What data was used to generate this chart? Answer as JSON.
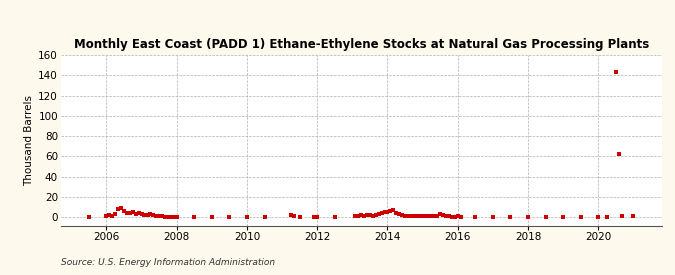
{
  "title": "Monthly East Coast (PADD 1) Ethane-Ethylene Stocks at Natural Gas Processing Plants",
  "ylabel": "Thousand Barrels",
  "source": "Source: U.S. Energy Information Administration",
  "background_color": "#fef9ed",
  "plot_bg_color": "#ffffff",
  "marker_color": "#cc0000",
  "xlim_left": 2004.7,
  "xlim_right": 2021.8,
  "ylim_bottom": -8,
  "ylim_top": 160,
  "yticks": [
    0,
    20,
    40,
    60,
    80,
    100,
    120,
    140,
    160
  ],
  "xticks": [
    2006,
    2008,
    2010,
    2012,
    2014,
    2016,
    2018,
    2020
  ],
  "data_points": [
    [
      2005.5,
      0
    ],
    [
      2006.0,
      1
    ],
    [
      2006.08,
      2
    ],
    [
      2006.17,
      1
    ],
    [
      2006.25,
      3
    ],
    [
      2006.33,
      8
    ],
    [
      2006.42,
      9
    ],
    [
      2006.5,
      6
    ],
    [
      2006.58,
      4
    ],
    [
      2006.67,
      4
    ],
    [
      2006.75,
      5
    ],
    [
      2006.83,
      3
    ],
    [
      2006.92,
      4
    ],
    [
      2007.0,
      3
    ],
    [
      2007.08,
      2
    ],
    [
      2007.17,
      2
    ],
    [
      2007.25,
      3
    ],
    [
      2007.33,
      2
    ],
    [
      2007.42,
      1
    ],
    [
      2007.5,
      1
    ],
    [
      2007.58,
      1
    ],
    [
      2007.67,
      0
    ],
    [
      2007.75,
      0
    ],
    [
      2007.83,
      0
    ],
    [
      2007.92,
      0
    ],
    [
      2008.0,
      0
    ],
    [
      2008.5,
      0
    ],
    [
      2009.0,
      0
    ],
    [
      2009.5,
      0
    ],
    [
      2010.0,
      0
    ],
    [
      2010.5,
      0
    ],
    [
      2011.25,
      2
    ],
    [
      2011.33,
      1
    ],
    [
      2011.5,
      0
    ],
    [
      2011.92,
      0
    ],
    [
      2012.0,
      0
    ],
    [
      2012.5,
      0
    ],
    [
      2013.08,
      1
    ],
    [
      2013.17,
      1
    ],
    [
      2013.25,
      2
    ],
    [
      2013.33,
      1
    ],
    [
      2013.42,
      2
    ],
    [
      2013.5,
      2
    ],
    [
      2013.58,
      1
    ],
    [
      2013.67,
      2
    ],
    [
      2013.75,
      3
    ],
    [
      2013.83,
      4
    ],
    [
      2013.92,
      5
    ],
    [
      2014.0,
      5
    ],
    [
      2014.08,
      6
    ],
    [
      2014.17,
      7
    ],
    [
      2014.25,
      4
    ],
    [
      2014.33,
      3
    ],
    [
      2014.42,
      2
    ],
    [
      2014.5,
      1
    ],
    [
      2014.58,
      1
    ],
    [
      2014.67,
      1
    ],
    [
      2014.75,
      1
    ],
    [
      2014.83,
      1
    ],
    [
      2014.92,
      1
    ],
    [
      2015.0,
      1
    ],
    [
      2015.08,
      1
    ],
    [
      2015.17,
      1
    ],
    [
      2015.25,
      1
    ],
    [
      2015.33,
      1
    ],
    [
      2015.42,
      1
    ],
    [
      2015.5,
      3
    ],
    [
      2015.58,
      2
    ],
    [
      2015.67,
      1
    ],
    [
      2015.75,
      1
    ],
    [
      2015.83,
      0
    ],
    [
      2015.92,
      0
    ],
    [
      2016.0,
      1
    ],
    [
      2016.08,
      0
    ],
    [
      2016.5,
      0
    ],
    [
      2017.0,
      0
    ],
    [
      2017.5,
      0
    ],
    [
      2018.0,
      0
    ],
    [
      2018.5,
      0
    ],
    [
      2019.0,
      0
    ],
    [
      2019.5,
      0
    ],
    [
      2020.0,
      0
    ],
    [
      2020.25,
      0
    ],
    [
      2020.5,
      143
    ],
    [
      2020.58,
      62
    ],
    [
      2020.67,
      1
    ],
    [
      2021.0,
      1
    ]
  ]
}
